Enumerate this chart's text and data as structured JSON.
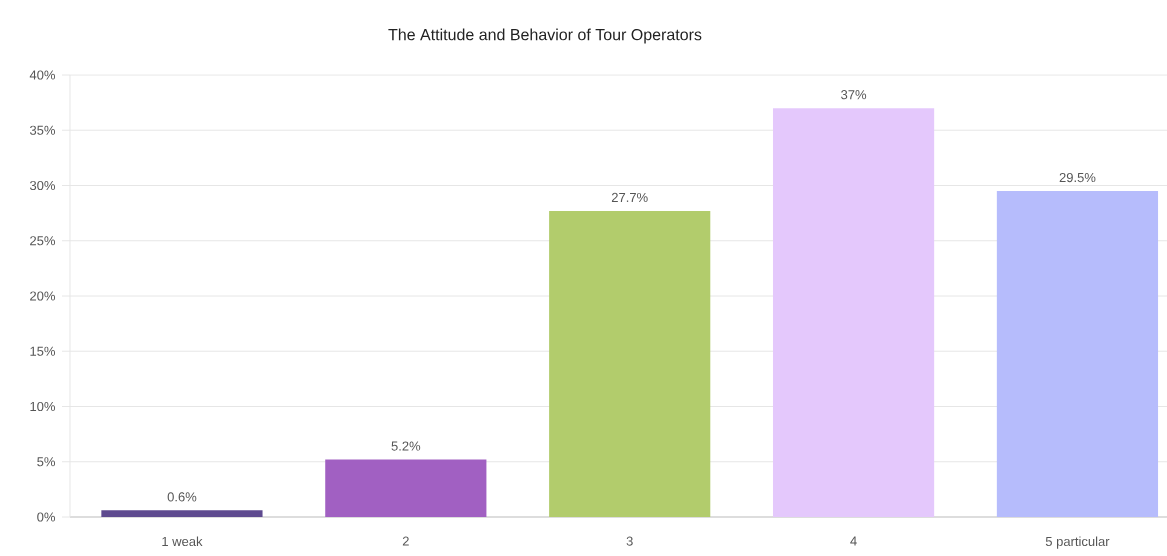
{
  "chart_data": {
    "type": "bar",
    "title": "The Attitude and Behavior of Tour Operators",
    "categories": [
      "1   weak",
      "2",
      "3",
      "4",
      "5   particular"
    ],
    "values": [
      0.6,
      5.2,
      27.7,
      37,
      29.5
    ],
    "colors": [
      "#5e4a8f",
      "#a160c2",
      "#b2cc6c",
      "#e4c8fc",
      "#b6bcfc"
    ],
    "value_labels": [
      "0.6%",
      "5.2%",
      "27.7%",
      "37%",
      "29.5%"
    ],
    "ylim": [
      0,
      40
    ],
    "yticks": [
      {
        "value": 0,
        "label": "0%"
      },
      {
        "value": 5,
        "label": "5%"
      },
      {
        "value": 10,
        "label": "10%"
      },
      {
        "value": 15,
        "label": "15%"
      },
      {
        "value": 20,
        "label": "20%"
      },
      {
        "value": 25,
        "label": "25%"
      },
      {
        "value": 30,
        "label": "30%"
      },
      {
        "value": 35,
        "label": "35%"
      },
      {
        "value": 40,
        "label": "40%"
      }
    ],
    "grid": "y"
  }
}
